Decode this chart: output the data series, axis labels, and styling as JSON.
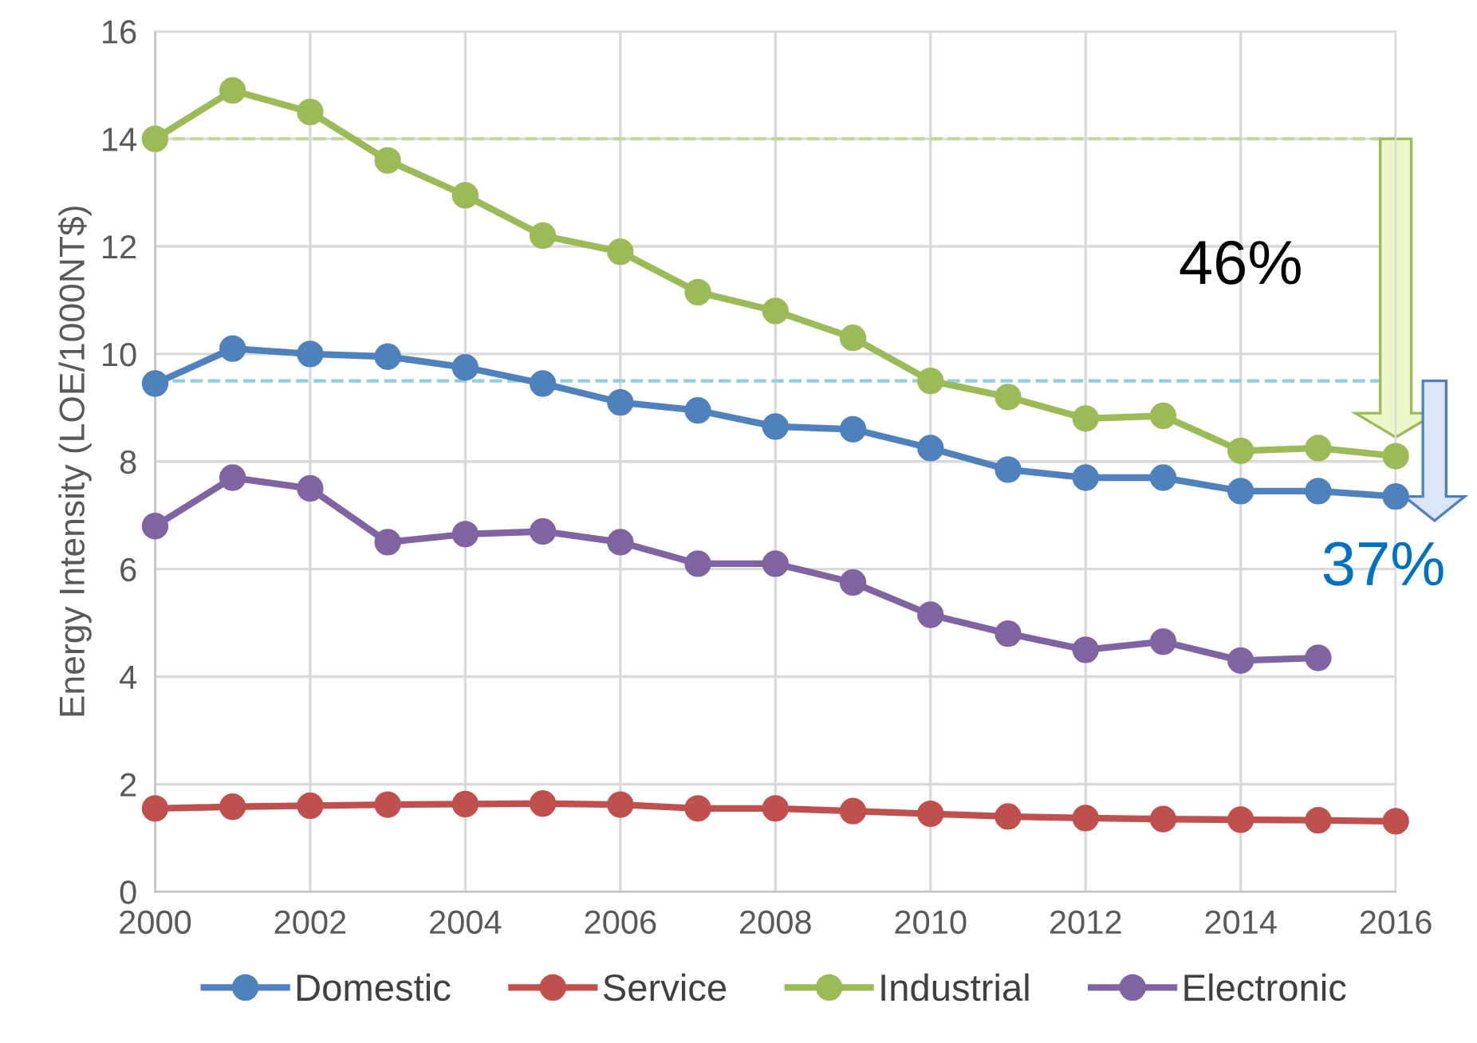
{
  "chart_data": {
    "type": "line",
    "ylabel": "Energy Intensity (LOE/1000NT$)",
    "x": [
      2000,
      2001,
      2002,
      2003,
      2004,
      2005,
      2006,
      2007,
      2008,
      2009,
      2010,
      2011,
      2012,
      2013,
      2014,
      2015,
      2016
    ],
    "series": [
      {
        "name": "Domestic",
        "color": "#4f81bd",
        "values": [
          9.45,
          10.1,
          10.0,
          9.95,
          9.75,
          9.45,
          9.1,
          8.95,
          8.65,
          8.6,
          8.25,
          7.85,
          7.7,
          7.7,
          7.45,
          7.45,
          7.35
        ]
      },
      {
        "name": "Service",
        "color": "#c0504d",
        "values": [
          1.55,
          1.58,
          1.6,
          1.62,
          1.63,
          1.64,
          1.62,
          1.55,
          1.55,
          1.5,
          1.45,
          1.4,
          1.37,
          1.35,
          1.34,
          1.33,
          1.31
        ]
      },
      {
        "name": "Industrial",
        "color": "#9bbb59",
        "values": [
          14.0,
          14.9,
          14.5,
          13.6,
          12.95,
          12.2,
          11.9,
          11.15,
          10.8,
          10.3,
          9.5,
          9.2,
          8.8,
          8.85,
          8.2,
          8.25,
          8.1
        ]
      },
      {
        "name": "Electronic",
        "color": "#8064a2",
        "values": [
          6.8,
          7.7,
          7.5,
          6.5,
          6.65,
          6.7,
          6.5,
          6.1,
          6.1,
          5.75,
          5.15,
          4.8,
          4.5,
          4.65,
          4.3,
          4.35,
          null
        ]
      }
    ],
    "ref_lines": [
      {
        "axis": "y",
        "value": 14,
        "color": "#c4d79b",
        "line_style": "dashed"
      },
      {
        "axis": "y",
        "value": 9.5,
        "color": "#92cddc",
        "line_style": "dashed"
      }
    ],
    "annotations": [
      "46%",
      "37%"
    ],
    "xlim": [
      2000,
      2016
    ],
    "xticks": [
      2000,
      2002,
      2004,
      2006,
      2008,
      2010,
      2012,
      2014,
      2016
    ],
    "ylim": [
      0,
      16
    ],
    "yticks": [
      0,
      2,
      4,
      6,
      8,
      10,
      12,
      14,
      16
    ],
    "grid": true,
    "legend": "bottom",
    "marker": "circle",
    "line_style": "solid"
  }
}
